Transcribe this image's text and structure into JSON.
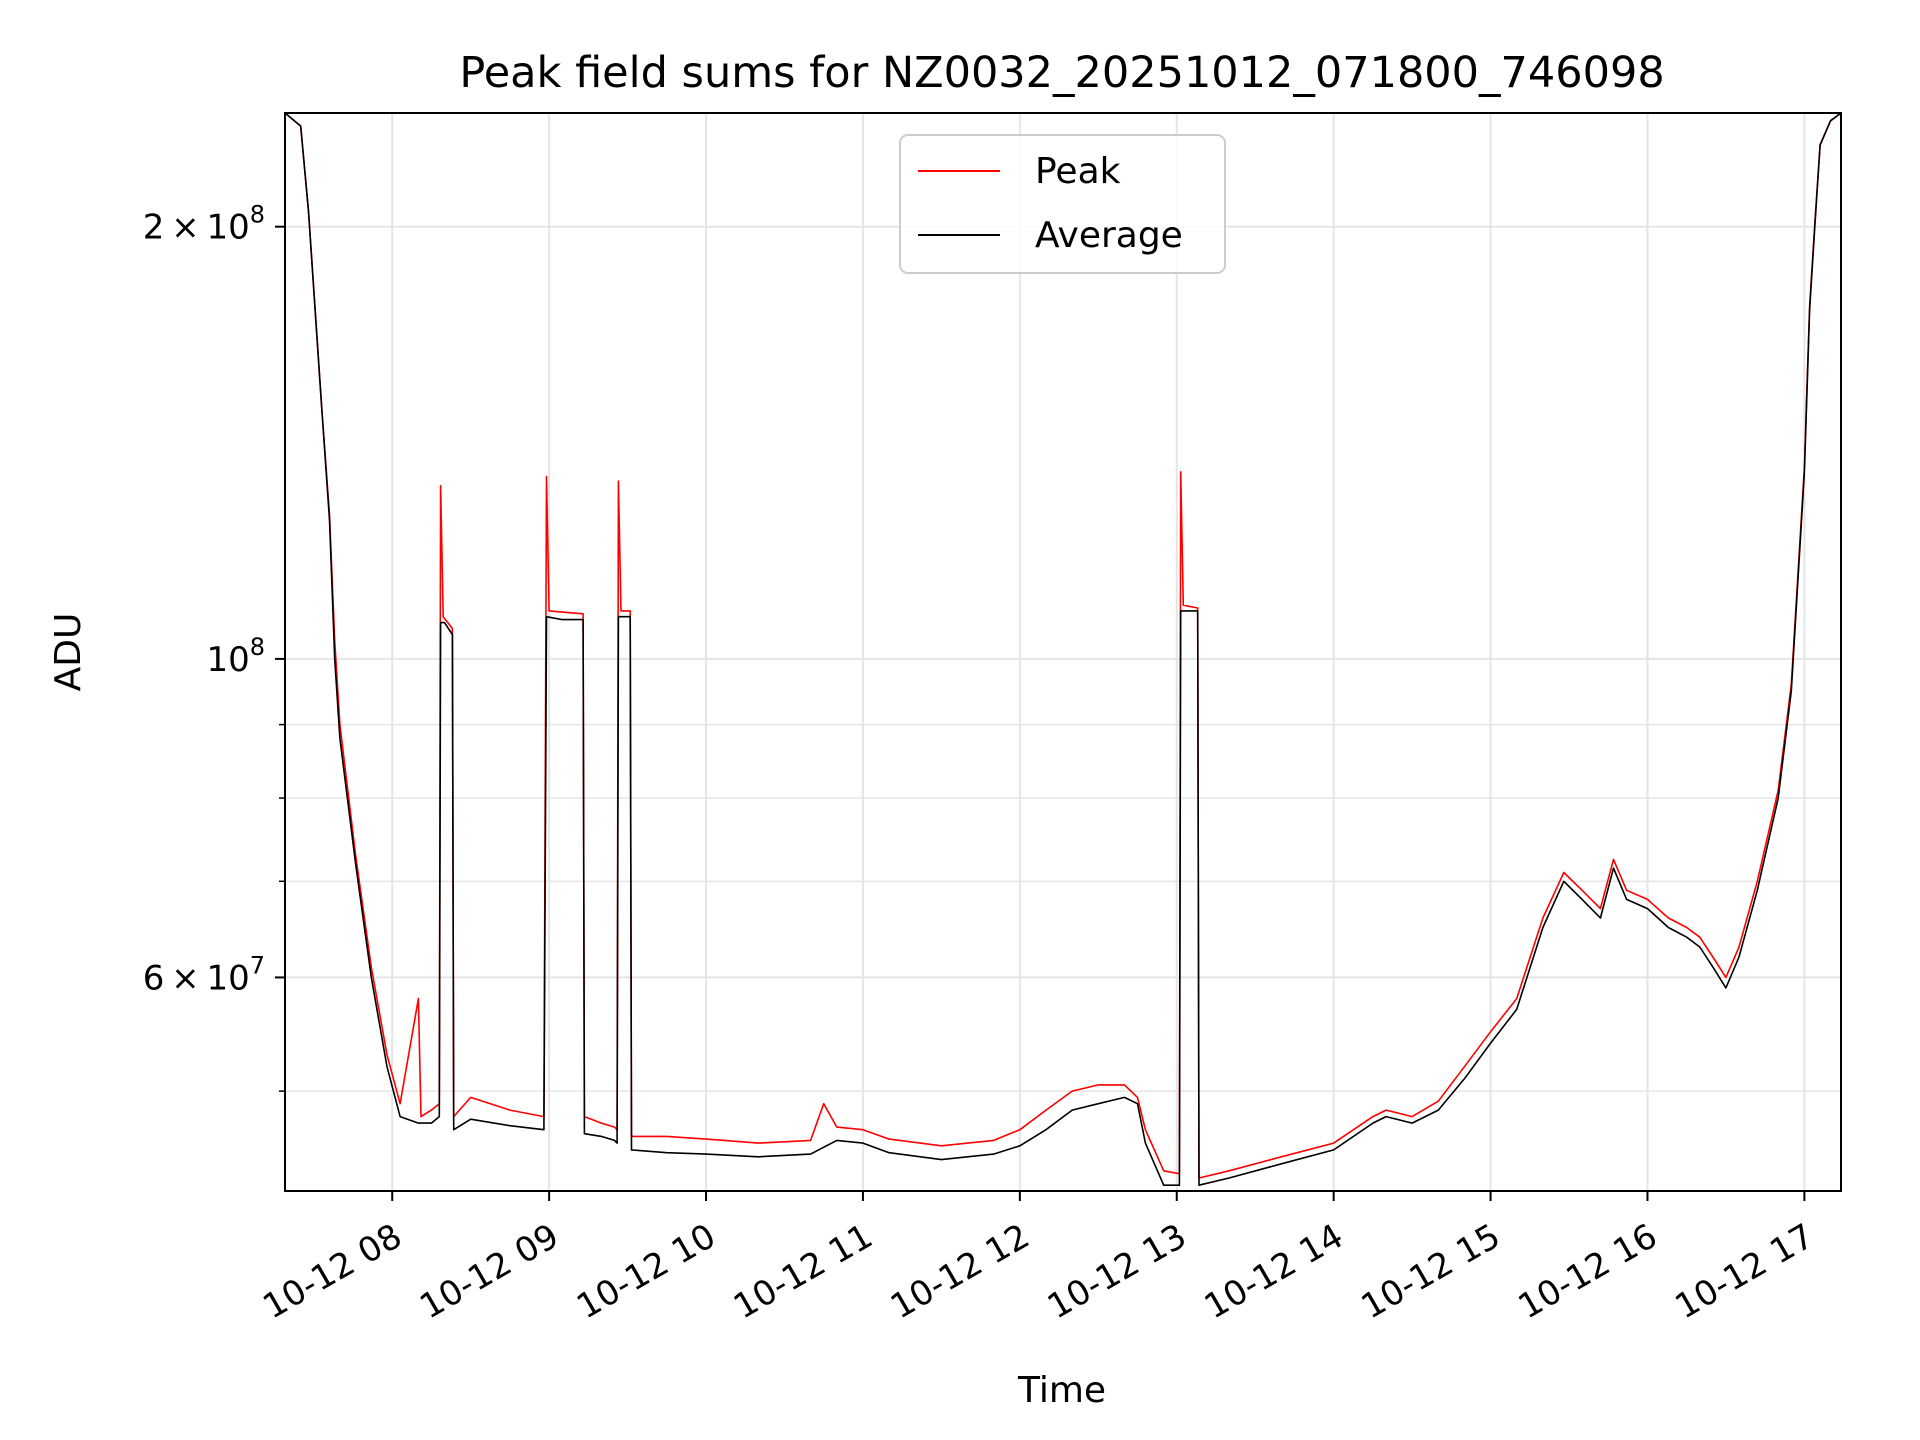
{
  "chart_data": {
    "type": "line",
    "title": "Peak field sums for NZ0032_20251012_071800_746098",
    "xlabel": "Time",
    "ylabel": "ADU",
    "yscale": "log",
    "ylim": [
      42600000,
      240000000
    ],
    "xlim": [
      "10-12 07:19",
      "10-12 17:14"
    ],
    "grid": true,
    "legend": "top-center",
    "x_ticks": [
      "10-12 08",
      "10-12 09",
      "10-12 10",
      "10-12 11",
      "10-12 12",
      "10-12 13",
      "10-12 14",
      "10-12 15",
      "10-12 16",
      "10-12 17"
    ],
    "y_ticks_major": [
      {
        "value": 100000000,
        "base": "10",
        "exp": "8",
        "coef": ""
      },
      {
        "value": 200000000,
        "base": "10",
        "exp": "8",
        "coef": "2"
      },
      {
        "value": 60000000,
        "base": "10",
        "exp": "7",
        "coef": "6"
      }
    ],
    "y_ticks_minor": [
      50000000,
      70000000,
      80000000,
      90000000
    ],
    "colors": {
      "peak": "#ff0000",
      "average": "#000000",
      "grid": "#e5e5e5"
    },
    "series": [
      {
        "name": "Average",
        "color": "#000000",
        "points": [
          [
            "07:19",
            240000000
          ],
          [
            "07:25",
            235000000
          ],
          [
            "07:28",
            205000000
          ],
          [
            "07:33",
            150000000
          ],
          [
            "07:36",
            125000000
          ],
          [
            "07:38",
            100000000
          ],
          [
            "07:40",
            88000000
          ],
          [
            "07:46",
            72000000
          ],
          [
            "07:52",
            60000000
          ],
          [
            "07:58",
            52000000
          ],
          [
            "08:03",
            48000000
          ],
          [
            "08:10",
            47500000
          ],
          [
            "08:15",
            47500000
          ],
          [
            "08:18",
            48000000
          ],
          [
            "08:18.5",
            106000000
          ],
          [
            "08:20",
            106000000
          ],
          [
            "08:23",
            104000000
          ],
          [
            "08:23.5",
            47000000
          ],
          [
            "08:30",
            47800000
          ],
          [
            "08:45",
            47300000
          ],
          [
            "08:58",
            47000000
          ],
          [
            "08:59",
            107000000
          ],
          [
            "09:05",
            106500000
          ],
          [
            "09:13",
            106500000
          ],
          [
            "09:13.5",
            46700000
          ],
          [
            "09:20",
            46500000
          ],
          [
            "09:25",
            46200000
          ],
          [
            "09:26",
            46000000
          ],
          [
            "09:26.5",
            107000000
          ],
          [
            "09:31",
            107000000
          ],
          [
            "09:31.5",
            45500000
          ],
          [
            "09:45",
            45300000
          ],
          [
            "10:00",
            45200000
          ],
          [
            "10:20",
            45000000
          ],
          [
            "10:40",
            45200000
          ],
          [
            "10:50",
            46200000
          ],
          [
            "11:00",
            46000000
          ],
          [
            "11:10",
            45300000
          ],
          [
            "11:30",
            44800000
          ],
          [
            "11:50",
            45200000
          ],
          [
            "12:00",
            45800000
          ],
          [
            "12:10",
            47000000
          ],
          [
            "12:20",
            48500000
          ],
          [
            "12:30",
            49000000
          ],
          [
            "12:40",
            49500000
          ],
          [
            "12:45",
            49000000
          ],
          [
            "12:48",
            46000000
          ],
          [
            "12:55",
            43000000
          ],
          [
            "13:01",
            43000000
          ],
          [
            "13:01.5",
            108000000
          ],
          [
            "13:08",
            108000000
          ],
          [
            "13:08.5",
            43000000
          ],
          [
            "13:20",
            43500000
          ],
          [
            "13:40",
            44500000
          ],
          [
            "14:00",
            45500000
          ],
          [
            "14:15",
            47500000
          ],
          [
            "14:20",
            48000000
          ],
          [
            "14:30",
            47500000
          ],
          [
            "14:40",
            48500000
          ],
          [
            "14:50",
            51000000
          ],
          [
            "15:00",
            54000000
          ],
          [
            "15:10",
            57000000
          ],
          [
            "15:20",
            65000000
          ],
          [
            "15:28",
            70000000
          ],
          [
            "15:35",
            68000000
          ],
          [
            "15:42",
            66000000
          ],
          [
            "15:47",
            71500000
          ],
          [
            "15:52",
            68000000
          ],
          [
            "16:00",
            67000000
          ],
          [
            "16:08",
            65000000
          ],
          [
            "16:15",
            64000000
          ],
          [
            "16:20",
            63000000
          ],
          [
            "16:25",
            61000000
          ],
          [
            "16:30",
            59000000
          ],
          [
            "16:35",
            62000000
          ],
          [
            "16:42",
            69000000
          ],
          [
            "16:50",
            80000000
          ],
          [
            "16:55",
            95000000
          ],
          [
            "17:00",
            135000000
          ],
          [
            "17:02",
            175000000
          ],
          [
            "17:04",
            200000000
          ],
          [
            "17:06",
            228000000
          ],
          [
            "17:10",
            237000000
          ],
          [
            "17:14",
            240000000
          ]
        ]
      },
      {
        "name": "Peak",
        "color": "#ff0000",
        "points": [
          [
            "07:19",
            240000000
          ],
          [
            "07:25",
            235000000
          ],
          [
            "07:28",
            205000000
          ],
          [
            "07:33",
            150000000
          ],
          [
            "07:36",
            126000000
          ],
          [
            "07:38",
            103000000
          ],
          [
            "07:40",
            90000000
          ],
          [
            "07:46",
            73000000
          ],
          [
            "07:52",
            61000000
          ],
          [
            "07:58",
            53000000
          ],
          [
            "08:03",
            49000000
          ],
          [
            "08:10",
            58000000
          ],
          [
            "08:11",
            48000000
          ],
          [
            "08:15",
            48500000
          ],
          [
            "08:18",
            49000000
          ],
          [
            "08:18.5",
            132000000
          ],
          [
            "08:19.5",
            107000000
          ],
          [
            "08:23",
            105000000
          ],
          [
            "08:23.5",
            48000000
          ],
          [
            "08:30",
            49500000
          ],
          [
            "08:45",
            48500000
          ],
          [
            "08:58",
            48000000
          ],
          [
            "08:59",
            134000000
          ],
          [
            "09:00",
            108000000
          ],
          [
            "09:13",
            107500000
          ],
          [
            "09:13.5",
            48000000
          ],
          [
            "09:20",
            47500000
          ],
          [
            "09:25",
            47200000
          ],
          [
            "09:26",
            47000000
          ],
          [
            "09:26.5",
            133000000
          ],
          [
            "09:27.5",
            108000000
          ],
          [
            "09:31",
            108000000
          ],
          [
            "09:31.5",
            46500000
          ],
          [
            "09:45",
            46500000
          ],
          [
            "10:00",
            46300000
          ],
          [
            "10:20",
            46000000
          ],
          [
            "10:40",
            46200000
          ],
          [
            "10:45",
            49000000
          ],
          [
            "10:50",
            47200000
          ],
          [
            "11:00",
            47000000
          ],
          [
            "11:10",
            46300000
          ],
          [
            "11:30",
            45800000
          ],
          [
            "11:50",
            46200000
          ],
          [
            "12:00",
            47000000
          ],
          [
            "12:10",
            48500000
          ],
          [
            "12:20",
            50000000
          ],
          [
            "12:30",
            50500000
          ],
          [
            "12:40",
            50500000
          ],
          [
            "12:45",
            49500000
          ],
          [
            "12:48",
            47000000
          ],
          [
            "12:55",
            44000000
          ],
          [
            "13:01",
            43800000
          ],
          [
            "13:01.5",
            135000000
          ],
          [
            "13:02.5",
            109000000
          ],
          [
            "13:08",
            108500000
          ],
          [
            "13:08.5",
            43500000
          ],
          [
            "13:20",
            44000000
          ],
          [
            "13:40",
            45000000
          ],
          [
            "14:00",
            46000000
          ],
          [
            "14:15",
            48000000
          ],
          [
            "14:20",
            48500000
          ],
          [
            "14:30",
            48000000
          ],
          [
            "14:40",
            49200000
          ],
          [
            "14:50",
            52000000
          ],
          [
            "15:00",
            55000000
          ],
          [
            "15:10",
            58000000
          ],
          [
            "15:20",
            66000000
          ],
          [
            "15:28",
            71000000
          ],
          [
            "15:35",
            69000000
          ],
          [
            "15:42",
            67000000
          ],
          [
            "15:47",
            72500000
          ],
          [
            "15:52",
            69000000
          ],
          [
            "16:00",
            68000000
          ],
          [
            "16:08",
            66000000
          ],
          [
            "16:15",
            65000000
          ],
          [
            "16:20",
            64000000
          ],
          [
            "16:25",
            62000000
          ],
          [
            "16:30",
            60000000
          ],
          [
            "16:35",
            63000000
          ],
          [
            "16:42",
            70000000
          ],
          [
            "16:50",
            81000000
          ],
          [
            "16:55",
            96000000
          ],
          [
            "17:00",
            136000000
          ],
          [
            "17:02",
            176000000
          ],
          [
            "17:04",
            201000000
          ],
          [
            "17:06",
            228000000
          ],
          [
            "17:10",
            237000000
          ],
          [
            "17:14",
            240000000
          ]
        ]
      }
    ]
  }
}
